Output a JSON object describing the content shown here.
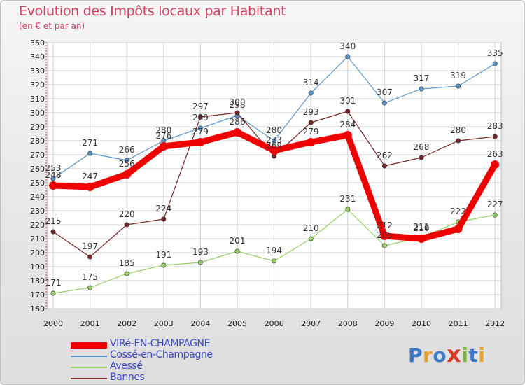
{
  "header": {
    "title": "Evolution des Impôts locaux par Habitant",
    "subtitle": "(en € et par an)"
  },
  "logo": {
    "text": "Proxiti",
    "letter_colors": [
      "#3d77c8",
      "#e8a12a",
      "#3d77c8",
      "#d93a2a",
      "#7ab43a",
      "#3d77c8",
      "#e8a12a"
    ]
  },
  "colors": {
    "title": "#d04060",
    "grid": "#d0d0d0",
    "axis_text": "#222222",
    "legend_text": "#3a48c8"
  },
  "chart_data": {
    "type": "line",
    "title": "Evolution des Impôts locaux par Habitant",
    "subtitle": "(en € et par an)",
    "xlabel": "",
    "ylabel": "",
    "x": [
      "2000",
      "2001",
      "2002",
      "2003",
      "2004",
      "2005",
      "2006",
      "2007",
      "2008",
      "2009",
      "2010",
      "2011",
      "2012"
    ],
    "ylim": [
      160,
      350
    ],
    "yticks": [
      160,
      170,
      180,
      190,
      200,
      210,
      220,
      230,
      240,
      250,
      260,
      270,
      280,
      290,
      300,
      310,
      320,
      330,
      340,
      350
    ],
    "grid": true,
    "legend_position": "bottom-left",
    "series": [
      {
        "name": "Cossé-en-Champagne",
        "color": "#5a96cc",
        "values": [
          253,
          271,
          266,
          280,
          289,
          298,
          280,
          314,
          340,
          307,
          317,
          319,
          335
        ],
        "labels": [
          "253",
          "271",
          "266",
          "280",
          "289",
          "298",
          "280",
          "314",
          "340",
          "307",
          "317",
          "319",
          "335"
        ]
      },
      {
        "name": "Avessé",
        "color": "#96d064",
        "values": [
          171,
          175,
          185,
          191,
          193,
          201,
          194,
          210,
          231,
          205,
          211,
          222,
          227
        ],
        "labels": [
          "171",
          "175",
          "185",
          "191",
          "193",
          "201",
          "194",
          "210",
          "231",
          "205",
          "211",
          "222",
          "227"
        ]
      },
      {
        "name": "Bannes",
        "color": "#782828",
        "values": [
          215,
          197,
          220,
          224,
          297,
          300,
          269,
          293,
          301,
          262,
          268,
          280,
          283
        ],
        "labels": [
          "215",
          "197",
          "220",
          "224",
          "297",
          "300",
          "269",
          "293",
          "301",
          "262",
          "268",
          "280",
          "283"
        ]
      },
      {
        "name": "VIRé-EN-CHAMPAGNE",
        "color": "#ee0000",
        "values": [
          248,
          247,
          256,
          276,
          279,
          286,
          273,
          279,
          284,
          212,
          210,
          217,
          263
        ],
        "labels": [
          "248",
          "247",
          "256",
          "276",
          "279",
          "286",
          "273",
          "279",
          "284",
          "212",
          "210",
          "",
          "263"
        ]
      }
    ],
    "legend_order": [
      "VIRé-EN-CHAMPAGNE",
      "Cossé-en-Champagne",
      "Avessé",
      "Bannes"
    ]
  }
}
